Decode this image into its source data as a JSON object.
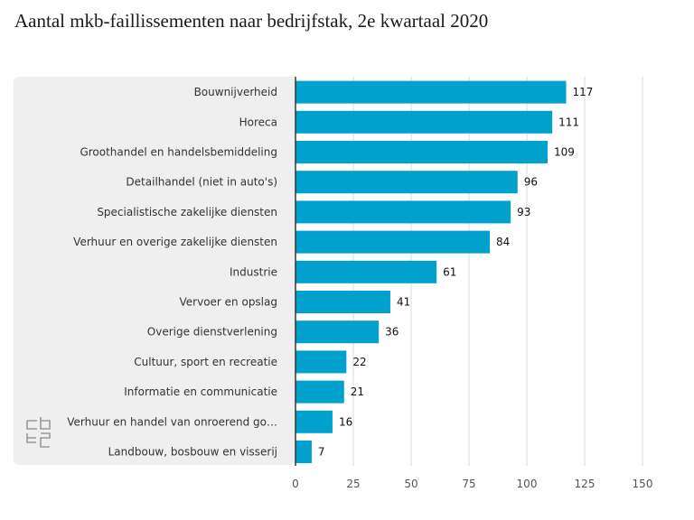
{
  "title": "Aantal mkb-faillissementen naar bedrijfstak, 2e kwartaal 2020",
  "logo": {
    "icon": "cbs-logo-icon"
  },
  "colors": {
    "bar": "#00a1cd",
    "panel": "#efefef",
    "grid": "#d9d9d9",
    "axis": "#333333"
  },
  "chart_data": {
    "type": "bar",
    "orientation": "horizontal",
    "title": "Aantal mkb-faillissementen naar bedrijfstak, 2e kwartaal 2020",
    "xlabel": "",
    "ylabel": "",
    "xlim": [
      0,
      150
    ],
    "ticks": [
      0,
      25,
      50,
      75,
      100,
      125,
      150
    ],
    "grid": true,
    "categories": [
      "Bouwnijverheid",
      "Horeca",
      "Groothandel en handelsbemiddeling",
      "Detailhandel (niet in auto's)",
      "Specialistische zakelijke diensten",
      "Verhuur en overige zakelijke diensten",
      "Industrie",
      "Vervoer en opslag",
      "Overige dienstverlening",
      "Cultuur, sport en recreatie",
      "Informatie en communicatie",
      "Verhuur en handel van onroerend go…",
      "Landbouw, bosbouw en visserij"
    ],
    "values": [
      117,
      111,
      109,
      96,
      93,
      84,
      61,
      41,
      36,
      22,
      21,
      16,
      7
    ]
  }
}
